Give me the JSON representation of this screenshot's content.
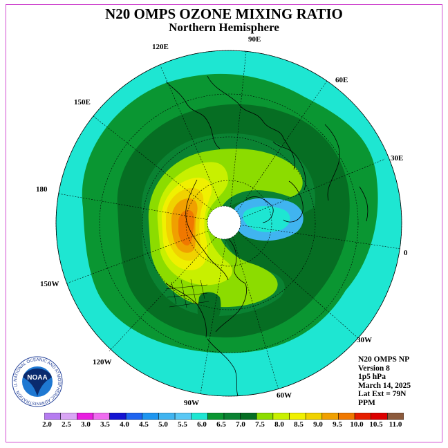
{
  "title": "N20 OMPS OZONE MIXING RATIO",
  "subtitle": "Northern Hemisphere",
  "longitude_labels": [
    "120E",
    "90E",
    "60E",
    "150E",
    "30E",
    "180",
    "0",
    "150W",
    "30W",
    "120W",
    "90W",
    "60W"
  ],
  "info": {
    "instrument": "N20 OMPS NP",
    "version": "Version 8",
    "level": "1p5 hPa",
    "date": "March 14, 2025",
    "lat_ext": "Lat Ext = 79N",
    "units": "PPM"
  },
  "logo": {
    "text": "NOAA",
    "ring_text": "NATIONAL OCEANIC AND ATMOSPHERIC ADMINISTRATION · U.S. DEPARTMENT OF COMMERCE"
  },
  "colorbar": {
    "colors": [
      "#b57cf0",
      "#d9a5f5",
      "#e81ee0",
      "#f06cf0",
      "#1414d2",
      "#1e64f0",
      "#1e96f0",
      "#40b4f0",
      "#5ac8f5",
      "#1ee6d2",
      "#0a9632",
      "#0a8232",
      "#066e23",
      "#8cdc00",
      "#c8f000",
      "#f0f000",
      "#f0d200",
      "#f0a000",
      "#f07800",
      "#e61e00",
      "#dc0000",
      "#8c5a3c"
    ],
    "labels": [
      "2.0",
      "2.5",
      "3.0",
      "3.5",
      "4.0",
      "4.5",
      "5.0",
      "5.5",
      "6.0",
      "6.5",
      "7.0",
      "7.5",
      "8.0",
      "8.5",
      "9.0",
      "9.5",
      "10.0",
      "10.5",
      "11.0"
    ]
  }
}
